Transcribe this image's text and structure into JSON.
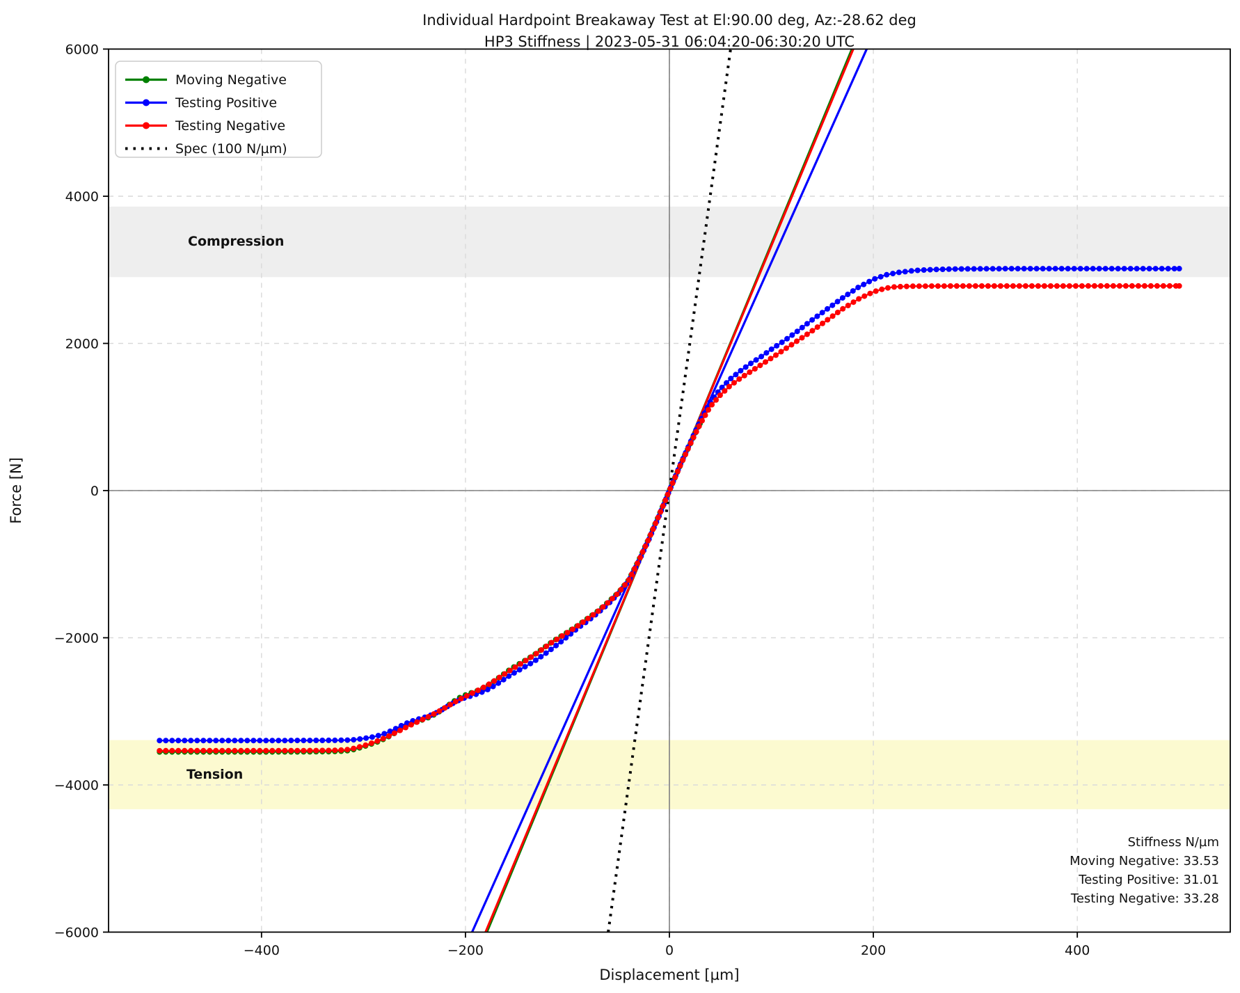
{
  "figure": {
    "title_line1": "Individual Hardpoint Breakaway Test at El:90.00 deg, Az:-28.62 deg",
    "title_line2": "HP3 Stiffness | 2023-05-31 06:04:20-06:30:20 UTC",
    "xlabel": "Displacement [µm]",
    "ylabel": "Force [N]"
  },
  "chart_data": {
    "type": "line",
    "title": "Individual Hardpoint Breakaway Test at El:90.00 deg, Az:-28.62 deg — HP3 Stiffness | 2023-05-31 06:04:20-06:30:20 UTC",
    "xlabel": "Displacement [µm]",
    "ylabel": "Force [N]",
    "xlim": [
      -550,
      550
    ],
    "ylim": [
      -6000,
      6000
    ],
    "xticks": [
      -400,
      -200,
      0,
      200,
      400
    ],
    "yticks": [
      -6000,
      -4000,
      -2000,
      0,
      2000,
      4000,
      6000
    ],
    "grid": true,
    "legend_position": "upper left",
    "colors": {
      "moving_negative": "#008000",
      "testing_positive": "#0000ff",
      "testing_negative": "#ff0000",
      "spec": "#000000",
      "grid": "#d9d9d9",
      "crosshair": "#808080",
      "compression_band": "#eeeeee",
      "tension_band": "#fcfad0"
    },
    "bands": [
      {
        "label": "Compression",
        "y_from": 2900,
        "y_to": 3860,
        "color": "#eeeeee"
      },
      {
        "label": "Tension",
        "y_from": -4330,
        "y_to": -3390,
        "color": "#fcfad0"
      }
    ],
    "spec_line": {
      "label": "Spec (100 N/µm)",
      "slope_n_per_um": 100,
      "color": "#000000"
    },
    "fit_lines": [
      {
        "series": "Moving Negative",
        "slope_n_per_um": 33.53,
        "color": "#008000"
      },
      {
        "series": "Testing Positive",
        "slope_n_per_um": 31.01,
        "color": "#0000ff"
      },
      {
        "series": "Testing Negative",
        "slope_n_per_um": 33.28,
        "color": "#ff0000"
      }
    ],
    "series": [
      {
        "name": "Moving Negative",
        "color": "#008000",
        "wiggle": 26,
        "points": [
          [
            -500,
            -3552
          ],
          [
            -430,
            -3552
          ],
          [
            -370,
            -3551
          ],
          [
            -335,
            -3548
          ],
          [
            -318,
            -3540
          ],
          [
            -308,
            -3515
          ],
          [
            -298,
            -3470
          ],
          [
            -288,
            -3415
          ],
          [
            -276,
            -3345
          ],
          [
            -262,
            -3255
          ],
          [
            -248,
            -3150
          ],
          [
            -234,
            -3045
          ],
          [
            -220,
            -2945
          ],
          [
            -205,
            -2835
          ],
          [
            -190,
            -2725
          ],
          [
            -175,
            -2600
          ],
          [
            -160,
            -2475
          ],
          [
            -145,
            -2345
          ],
          [
            -130,
            -2205
          ],
          [
            -115,
            -2055
          ],
          [
            -100,
            -1925
          ],
          [
            -90,
            -1835
          ],
          [
            -80,
            -1735
          ],
          [
            -70,
            -1635
          ],
          [
            -60,
            -1515
          ],
          [
            -50,
            -1385
          ],
          [
            -40,
            -1215
          ],
          [
            -30,
            -945
          ],
          [
            -20,
            -645
          ],
          [
            -10,
            -325
          ],
          [
            0,
            5
          ],
          [
            15,
            480
          ],
          [
            30,
            910
          ]
        ]
      },
      {
        "name": "Testing Positive",
        "color": "#0000ff",
        "wiggle": 20,
        "points": [
          [
            -500,
            -3397
          ],
          [
            -420,
            -3397
          ],
          [
            -360,
            -3396
          ],
          [
            -330,
            -3394
          ],
          [
            -312,
            -3390
          ],
          [
            -300,
            -3370
          ],
          [
            -290,
            -3340
          ],
          [
            -280,
            -3300
          ],
          [
            -268,
            -3240
          ],
          [
            -255,
            -3160
          ],
          [
            -240,
            -3070
          ],
          [
            -225,
            -2980
          ],
          [
            -210,
            -2890
          ],
          [
            -195,
            -2800
          ],
          [
            -180,
            -2700
          ],
          [
            -165,
            -2590
          ],
          [
            -150,
            -2470
          ],
          [
            -135,
            -2340
          ],
          [
            -120,
            -2200
          ],
          [
            -105,
            -2040
          ],
          [
            -90,
            -1870
          ],
          [
            -80,
            -1770
          ],
          [
            -70,
            -1660
          ],
          [
            -60,
            -1540
          ],
          [
            -50,
            -1400
          ],
          [
            -40,
            -1230
          ],
          [
            -30,
            -960
          ],
          [
            -20,
            -660
          ],
          [
            -10,
            -340
          ],
          [
            0,
            0
          ],
          [
            10,
            330
          ],
          [
            20,
            640
          ],
          [
            30,
            940
          ],
          [
            40,
            1200
          ],
          [
            50,
            1380
          ],
          [
            60,
            1520
          ],
          [
            70,
            1630
          ],
          [
            80,
            1730
          ],
          [
            90,
            1820
          ],
          [
            100,
            1920
          ],
          [
            112,
            2030
          ],
          [
            125,
            2160
          ],
          [
            140,
            2320
          ],
          [
            155,
            2470
          ],
          [
            170,
            2620
          ],
          [
            185,
            2760
          ],
          [
            200,
            2870
          ],
          [
            212,
            2930
          ],
          [
            225,
            2965
          ],
          [
            240,
            2990
          ],
          [
            260,
            3005
          ],
          [
            285,
            3012
          ],
          [
            320,
            3015
          ],
          [
            380,
            3016
          ],
          [
            440,
            3016
          ],
          [
            500,
            3016
          ]
        ]
      },
      {
        "name": "Testing Negative",
        "color": "#ff0000",
        "wiggle": 8,
        "points": [
          [
            -500,
            -3535
          ],
          [
            -430,
            -3535
          ],
          [
            -370,
            -3534
          ],
          [
            -335,
            -3532
          ],
          [
            -318,
            -3525
          ],
          [
            -308,
            -3500
          ],
          [
            -298,
            -3460
          ],
          [
            -288,
            -3410
          ],
          [
            -276,
            -3340
          ],
          [
            -262,
            -3250
          ],
          [
            -248,
            -3150
          ],
          [
            -234,
            -3050
          ],
          [
            -220,
            -2950
          ],
          [
            -205,
            -2840
          ],
          [
            -190,
            -2730
          ],
          [
            -175,
            -2610
          ],
          [
            -160,
            -2480
          ],
          [
            -145,
            -2350
          ],
          [
            -130,
            -2210
          ],
          [
            -115,
            -2060
          ],
          [
            -100,
            -1930
          ],
          [
            -90,
            -1840
          ],
          [
            -80,
            -1740
          ],
          [
            -70,
            -1640
          ],
          [
            -60,
            -1520
          ],
          [
            -50,
            -1390
          ],
          [
            -40,
            -1220
          ],
          [
            -30,
            -950
          ],
          [
            -20,
            -650
          ],
          [
            -10,
            -330
          ],
          [
            0,
            0
          ],
          [
            10,
            320
          ],
          [
            20,
            620
          ],
          [
            30,
            900
          ],
          [
            40,
            1140
          ],
          [
            50,
            1300
          ],
          [
            60,
            1430
          ],
          [
            70,
            1530
          ],
          [
            80,
            1620
          ],
          [
            90,
            1710
          ],
          [
            100,
            1800
          ],
          [
            112,
            1910
          ],
          [
            125,
            2030
          ],
          [
            140,
            2170
          ],
          [
            155,
            2320
          ],
          [
            170,
            2470
          ],
          [
            185,
            2600
          ],
          [
            200,
            2700
          ],
          [
            212,
            2750
          ],
          [
            222,
            2770
          ],
          [
            240,
            2778
          ],
          [
            280,
            2780
          ],
          [
            360,
            2780
          ],
          [
            440,
            2781
          ],
          [
            500,
            2781
          ]
        ]
      }
    ],
    "stiffness_annotation": {
      "header": "Stiffness N/µm",
      "lines": [
        "Moving Negative: 33.53",
        "Testing Positive: 31.01",
        "Testing Negative: 33.28"
      ]
    }
  }
}
